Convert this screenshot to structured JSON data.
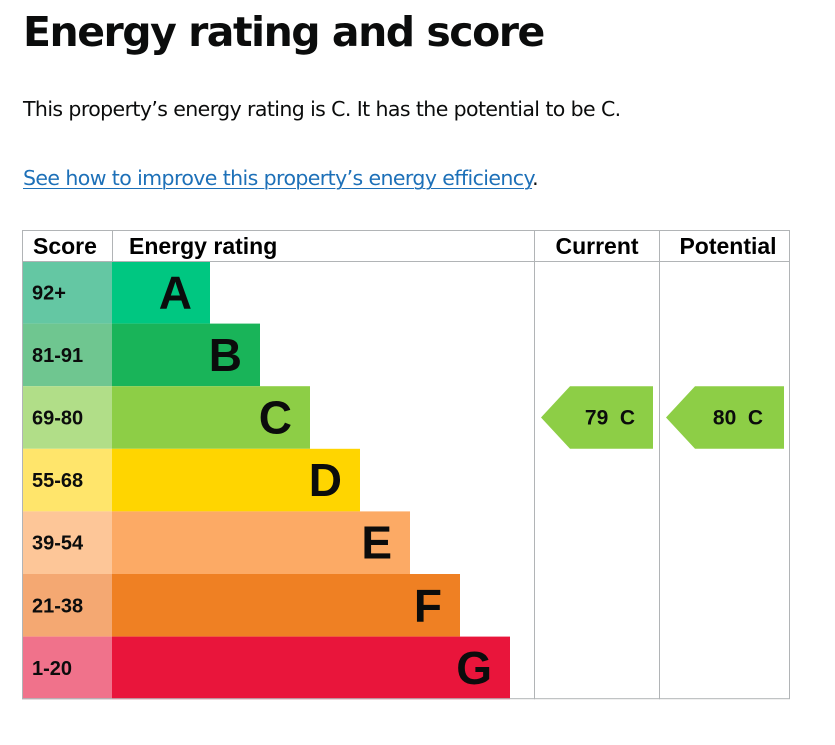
{
  "page": {
    "title": "Energy rating and score",
    "summary": "This property’s energy rating is C. It has the potential to be C.",
    "improve_link": "See how to improve this property’s energy efficiency",
    "improve_suffix": "."
  },
  "colors": {
    "link": "#1d70b8",
    "grid": "#b1b4b6"
  },
  "table": {
    "headers": {
      "score": "Score",
      "rating": "Energy rating",
      "current": "Current",
      "potential": "Potential"
    },
    "bands": [
      {
        "score": "92+",
        "letter": "A",
        "color": "#00c781",
        "score_bg": "#64c7a3"
      },
      {
        "score": "81-91",
        "letter": "B",
        "color": "#19b459",
        "score_bg": "#6fc690"
      },
      {
        "score": "69-80",
        "letter": "C",
        "color": "#8dce46",
        "score_bg": "#b1de88"
      },
      {
        "score": "55-68",
        "letter": "D",
        "color": "#ffd500",
        "score_bg": "#ffe56b"
      },
      {
        "score": "39-54",
        "letter": "E",
        "color": "#fcaa65",
        "score_bg": "#fdc698"
      },
      {
        "score": "21-38",
        "letter": "F",
        "color": "#ef8023",
        "score_bg": "#f4a872"
      },
      {
        "score": "1-20",
        "letter": "G",
        "color": "#e9153b",
        "score_bg": "#f0728b"
      }
    ],
    "current": {
      "score": 79,
      "letter": "C",
      "band": 2,
      "label": "79  C",
      "color": "#8dce46"
    },
    "potential": {
      "score": 80,
      "letter": "C",
      "band": 2,
      "label": "80  C",
      "color": "#8dce46"
    }
  }
}
